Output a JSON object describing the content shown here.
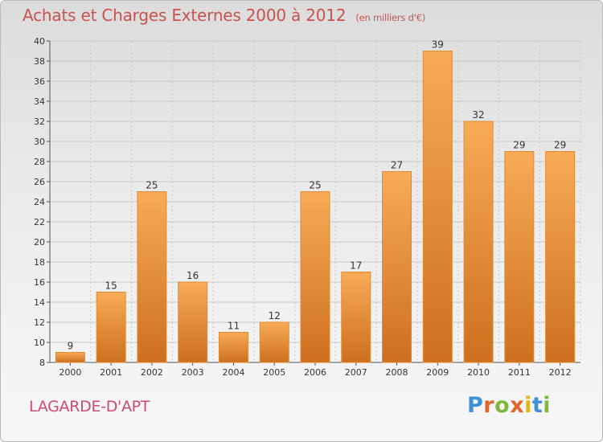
{
  "title": "Achats et Charges Externes 2000 à 2012",
  "subtitle": "(en milliers d'€)",
  "commune": "LAGARDE-D'APT",
  "logo": {
    "letters": [
      "P",
      "r",
      "o",
      "x",
      "i",
      "t",
      "i"
    ],
    "colors": [
      "#3f8fd6",
      "#e0662b",
      "#7fb93a",
      "#e0662b",
      "#e8b41c",
      "#3f8fd6",
      "#7fb93a"
    ]
  },
  "colors": {
    "bar_top": "#f8ab56",
    "bar_bottom": "#cd6f1e",
    "bar_edge": "#e08b34",
    "grid": "#c8c8c8",
    "axis": "#555555"
  },
  "chart_data": {
    "type": "bar",
    "title": "Achats et Charges Externes 2000 à 2012",
    "subtitle": "(en milliers d'€)",
    "categories": [
      "2000",
      "2001",
      "2002",
      "2003",
      "2004",
      "2005",
      "2006",
      "2007",
      "2008",
      "2009",
      "2010",
      "2011",
      "2012"
    ],
    "values": [
      9,
      15,
      25,
      16,
      11,
      12,
      25,
      17,
      27,
      39,
      32,
      29,
      29
    ],
    "ylim": [
      8,
      40
    ],
    "yticks": [
      8,
      10,
      12,
      14,
      16,
      18,
      20,
      22,
      24,
      26,
      28,
      30,
      32,
      34,
      36,
      38,
      40
    ],
    "grid": true,
    "data_labels": true
  }
}
